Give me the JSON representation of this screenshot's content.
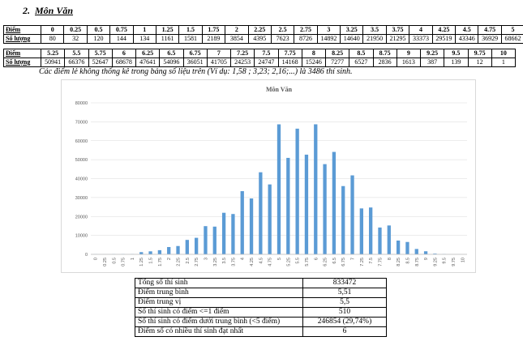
{
  "heading": {
    "number": "2.",
    "title": "Môn Văn"
  },
  "score_table": {
    "row_label_score": "Điểm",
    "row_label_count": "Số lượng",
    "rows1": {
      "scores": [
        "0",
        "0.25",
        "0.5",
        "0.75",
        "1",
        "1.25",
        "1.5",
        "1.75",
        "2",
        "2.25",
        "2.5",
        "2.75",
        "3",
        "3.25",
        "3.5",
        "3.75",
        "4",
        "4.25",
        "4.5",
        "4.75",
        "5"
      ],
      "counts": [
        "80",
        "32",
        "120",
        "144",
        "134",
        "1161",
        "1581",
        "2189",
        "3854",
        "4395",
        "7623",
        "8726",
        "14892",
        "14640",
        "21950",
        "21295",
        "33373",
        "29519",
        "43346",
        "36929",
        "68662"
      ]
    },
    "rows2": {
      "scores": [
        "5.25",
        "5.5",
        "5.75",
        "6",
        "6.25",
        "6.5",
        "6.75",
        "7",
        "7.25",
        "7.5",
        "7.75",
        "8",
        "8.25",
        "8.5",
        "8.75",
        "9",
        "9.25",
        "9.5",
        "9.75",
        "10"
      ],
      "counts": [
        "50941",
        "66376",
        "52647",
        "68678",
        "47641",
        "54096",
        "36051",
        "41705",
        "24253",
        "24747",
        "14168",
        "15246",
        "7277",
        "6527",
        "2836",
        "1613",
        "387",
        "139",
        "12",
        "1"
      ]
    }
  },
  "note": "Các điểm lẻ không thống kê trong bảng số liệu trên (Ví dụ: 1,58 ; 3,23; 2,16;...) là 3486 thí sinh.",
  "chart_data": {
    "type": "bar",
    "title": "Môn Văn",
    "xlabel": "",
    "ylabel": "",
    "ylim": [
      0,
      80000
    ],
    "yticks": [
      "0",
      "10000",
      "20000",
      "30000",
      "40000",
      "50000",
      "60000",
      "70000",
      "80000"
    ],
    "grid": true,
    "bar_color": "#5b9bd5",
    "categories": [
      "0",
      "0.25",
      "0.5",
      "0.75",
      "1",
      "1.25",
      "1.5",
      "1.75",
      "2",
      "2.25",
      "2.5",
      "2.75",
      "3",
      "3.25",
      "3.5",
      "3.75",
      "4",
      "4.25",
      "4.5",
      "4.75",
      "5",
      "5.25",
      "5.5",
      "5.75",
      "6",
      "6.25",
      "6.5",
      "6.75",
      "7",
      "7.25",
      "7.5",
      "7.75",
      "8",
      "8.25",
      "8.5",
      "8.75",
      "9",
      "9.25",
      "9.5",
      "9.75",
      "10"
    ],
    "values": [
      80,
      32,
      120,
      144,
      134,
      1161,
      1581,
      2189,
      3854,
      4395,
      7623,
      8726,
      14892,
      14640,
      21950,
      21295,
      33373,
      29519,
      43346,
      36929,
      68662,
      50941,
      66376,
      52647,
      68678,
      47641,
      54096,
      36051,
      41705,
      24253,
      24747,
      14168,
      15246,
      7277,
      6527,
      2836,
      1613,
      387,
      139,
      12,
      1
    ]
  },
  "stats": [
    {
      "label": "Tổng số thí sinh",
      "value": "833472"
    },
    {
      "label": "Điểm trung bình",
      "value": "5,51"
    },
    {
      "label": "Điểm trung vị",
      "value": "5,5"
    },
    {
      "label": "Số thí sinh có điểm <=1 điểm",
      "value": "510"
    },
    {
      "label": "Số thí sinh có điểm dưới trung bình (<5 điểm)",
      "value": "246854 (29,74%)"
    },
    {
      "label": "Điểm số có nhiều thí sinh đạt nhất",
      "value": "6"
    }
  ]
}
